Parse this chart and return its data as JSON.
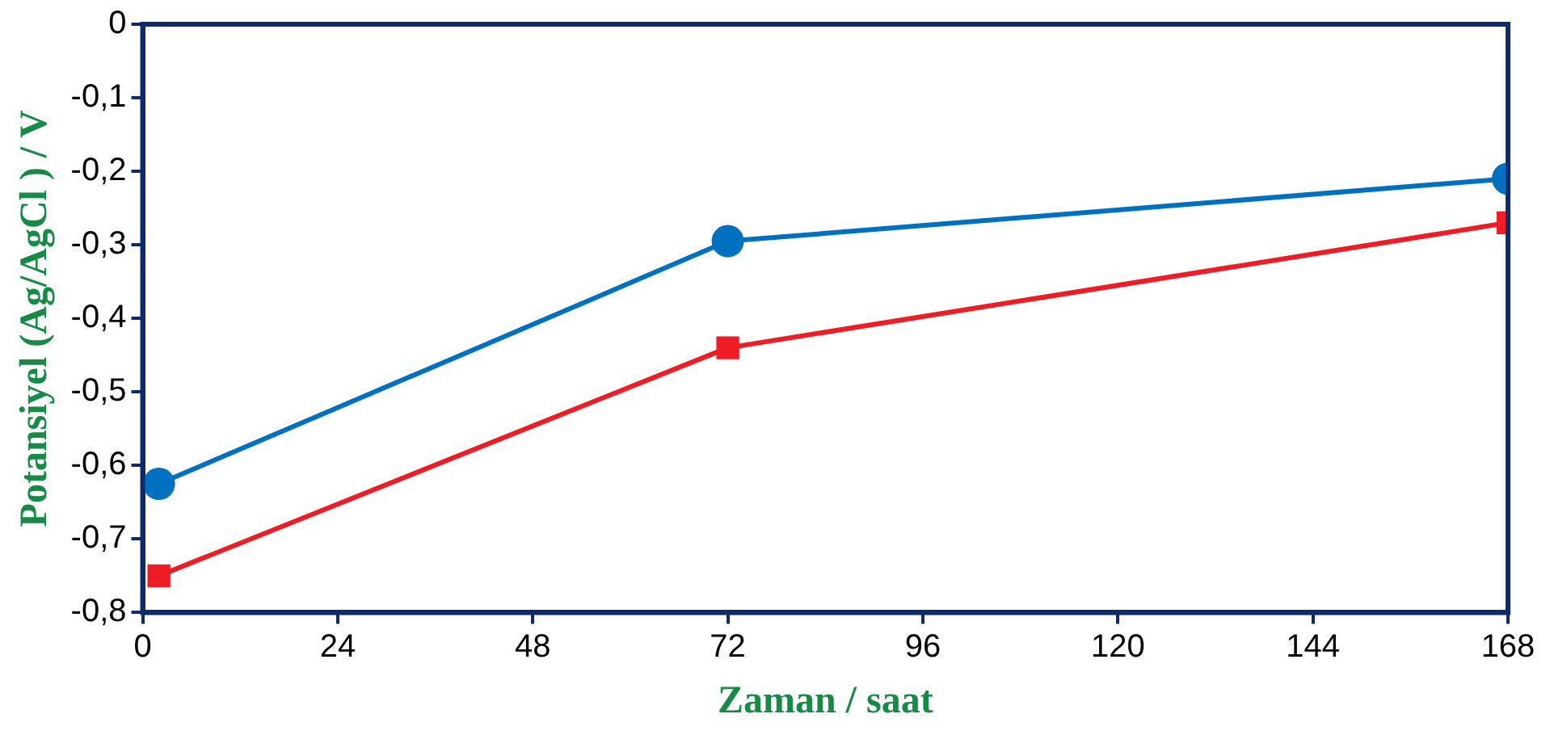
{
  "chart_data": {
    "type": "line",
    "xlabel": "Zaman / saat",
    "ylabel": "Potansiyel (Ag/AgCl ) / V",
    "x": [
      2,
      72,
      168
    ],
    "series": [
      {
        "color": "#0070c0",
        "marker": "circle",
        "values": [
          -0.625,
          -0.295,
          -0.21
        ]
      },
      {
        "color": "#ee1c25",
        "marker": "square",
        "values": [
          -0.75,
          -0.44,
          -0.27
        ]
      }
    ],
    "xlim": [
      0,
      168
    ],
    "xticks": [
      0,
      24,
      48,
      72,
      96,
      120,
      144,
      168
    ],
    "ylim": [
      -0.8,
      0
    ],
    "yticks": [
      {
        "value": -0.8,
        "label": "-0,8"
      },
      {
        "value": -0.7,
        "label": "-0,7"
      },
      {
        "value": -0.6,
        "label": "-0,6"
      },
      {
        "value": -0.5,
        "label": "-0,5"
      },
      {
        "value": -0.4,
        "label": "-0,4"
      },
      {
        "value": -0.3,
        "label": "-0,3"
      },
      {
        "value": -0.2,
        "label": "-0,2"
      },
      {
        "value": -0.1,
        "label": "-0,1"
      },
      0
    ],
    "grid": false,
    "legend": false,
    "line_style": "solid"
  }
}
